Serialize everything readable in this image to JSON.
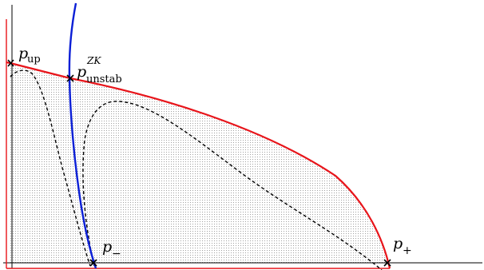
{
  "points": {
    "p_up": {
      "base": "p",
      "sub": "up"
    },
    "p_zk": {
      "base": "p",
      "sup": "ZK",
      "sub": "unstab"
    },
    "p_minus": {
      "base": "p",
      "sub": "−"
    },
    "p_plus": {
      "base": "p",
      "sub": "+"
    }
  },
  "colors": {
    "boundary": "#e8141a",
    "separatrix": "#0b1fd6",
    "dashed": "#000000",
    "axes": "#000000",
    "shading_dot": "#8a8a8a"
  }
}
